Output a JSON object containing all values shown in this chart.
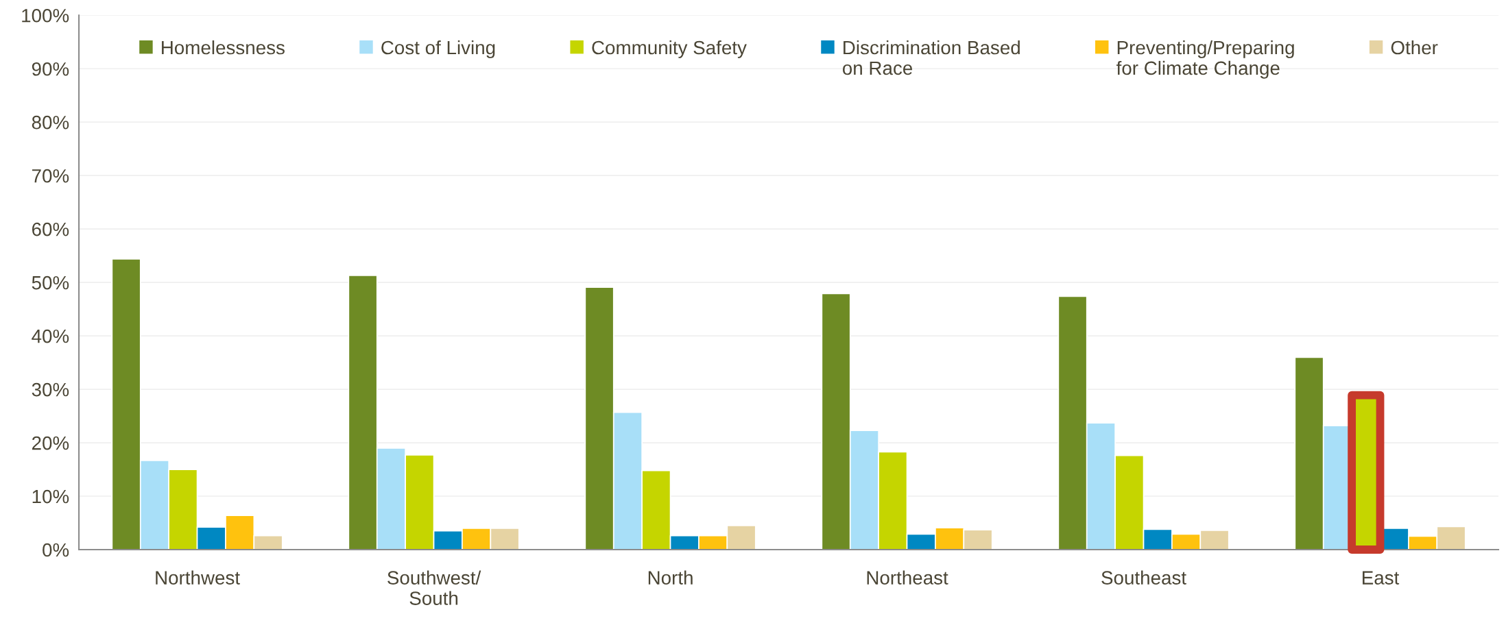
{
  "chart_data": {
    "type": "bar",
    "categories": [
      "Northwest",
      "Southwest/\nSouth",
      "North",
      "Northeast",
      "Southeast",
      "East"
    ],
    "series": [
      {
        "name": "Homelessness",
        "color": "#6e8b24",
        "values": [
          54.4,
          51.3,
          49.1,
          47.9,
          47.4,
          36.0
        ]
      },
      {
        "name": "Cost of Living",
        "color": "#a8dff8",
        "values": [
          16.7,
          19.0,
          25.7,
          22.3,
          23.7,
          23.2
        ]
      },
      {
        "name": "Community Safety",
        "color": "#c5d500",
        "values": [
          15.0,
          17.7,
          14.8,
          18.3,
          17.6,
          28.9
        ]
      },
      {
        "name": "Discrimination Based\non Race",
        "color": "#0088c2",
        "values": [
          4.2,
          3.5,
          2.6,
          2.9,
          3.8,
          4.0
        ]
      },
      {
        "name": "Preventing/Preparing\nfor Climate Change",
        "color": "#ffc20e",
        "values": [
          6.4,
          4.0,
          2.6,
          4.1,
          2.9,
          2.5
        ]
      },
      {
        "name": "Other",
        "color": "#e6d3a3",
        "values": [
          2.6,
          4.0,
          4.5,
          3.7,
          3.6,
          4.3
        ]
      }
    ],
    "ylim": [
      0,
      100
    ],
    "yticks": [
      {
        "value": 0,
        "label": "0%"
      },
      {
        "value": 10,
        "label": "10%"
      },
      {
        "value": 20,
        "label": "20%"
      },
      {
        "value": 30,
        "label": "30%"
      },
      {
        "value": 40,
        "label": "40%"
      },
      {
        "value": 50,
        "label": "50%"
      },
      {
        "value": 60,
        "label": "60%"
      },
      {
        "value": 70,
        "label": "70%"
      },
      {
        "value": 80,
        "label": "80%"
      },
      {
        "value": 90,
        "label": "90%"
      },
      {
        "value": 100,
        "label": "100%"
      }
    ],
    "grid": "y",
    "legend": "top"
  }
}
